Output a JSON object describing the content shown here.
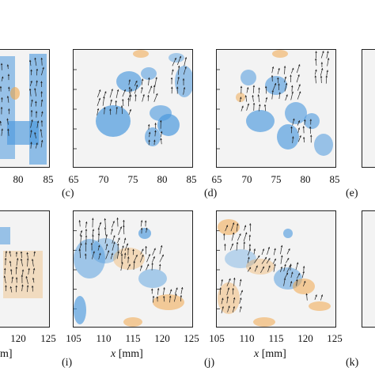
{
  "figure": {
    "top_row": {
      "panels": [
        {
          "id": "b-partial",
          "letter": "",
          "ticks": [
            "80",
            "85"
          ]
        },
        {
          "id": "c",
          "letter": "(c)",
          "ticks": [
            "65",
            "70",
            "75",
            "80",
            "85"
          ]
        },
        {
          "id": "d",
          "letter": "(d)",
          "ticks": [
            "65",
            "70",
            "75",
            "80",
            "85"
          ]
        },
        {
          "id": "e",
          "letter": "(e)",
          "ticks": []
        }
      ]
    },
    "bottom_row": {
      "panels": [
        {
          "id": "h-partial",
          "letter": "",
          "ticks": [
            "120",
            "125"
          ],
          "axis_title_fragment": "m]"
        },
        {
          "id": "i",
          "letter": "(i)",
          "ticks": [
            "105",
            "110",
            "115",
            "120",
            "125"
          ],
          "axis_title_var": "x",
          "axis_title_unit": "[mm]"
        },
        {
          "id": "j",
          "letter": "(j)",
          "ticks": [
            "105",
            "110",
            "115",
            "120",
            "125"
          ],
          "axis_title_var": "x",
          "axis_title_unit": "[mm]"
        },
        {
          "id": "k",
          "letter": "(k)",
          "ticks": []
        }
      ]
    },
    "colors": {
      "background": "#f3f3f3",
      "blue": "#4a98dd",
      "orange": "#f0a64a",
      "arrow": "#222222"
    }
  }
}
